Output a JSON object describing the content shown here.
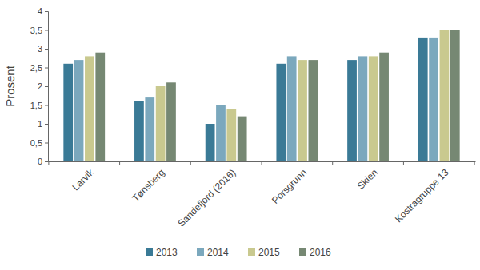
{
  "chart_data": {
    "type": "bar",
    "y_label": "Prosent",
    "categories": [
      "Larvik",
      "Tønsberg",
      "Sandefjord (2016)",
      "Porsgrunn",
      "Skien",
      "Kostragruppe 13"
    ],
    "series": [
      {
        "name": "2013",
        "color": "#3a7a96",
        "values": [
          2.6,
          1.6,
          1.0,
          2.6,
          2.7,
          3.3
        ]
      },
      {
        "name": "2014",
        "color": "#7ba8bd",
        "values": [
          2.7,
          1.7,
          1.5,
          2.8,
          2.8,
          3.3
        ]
      },
      {
        "name": "2015",
        "color": "#c9c98f",
        "values": [
          2.8,
          2.0,
          1.4,
          2.7,
          2.8,
          3.5
        ]
      },
      {
        "name": "2016",
        "color": "#768873",
        "values": [
          2.9,
          2.1,
          1.2,
          2.7,
          2.9,
          3.5
        ]
      }
    ],
    "ylim": [
      0,
      4
    ],
    "yticks": [
      0,
      {
        "value": 0.5,
        "label": "0,5"
      },
      1,
      {
        "value": 1.5,
        "label": "1,5"
      },
      2,
      {
        "value": 2.5,
        "label": "2,5"
      },
      3,
      {
        "value": 3.5,
        "label": "3,5"
      },
      4
    ],
    "grid": false,
    "legend": "bottom"
  }
}
